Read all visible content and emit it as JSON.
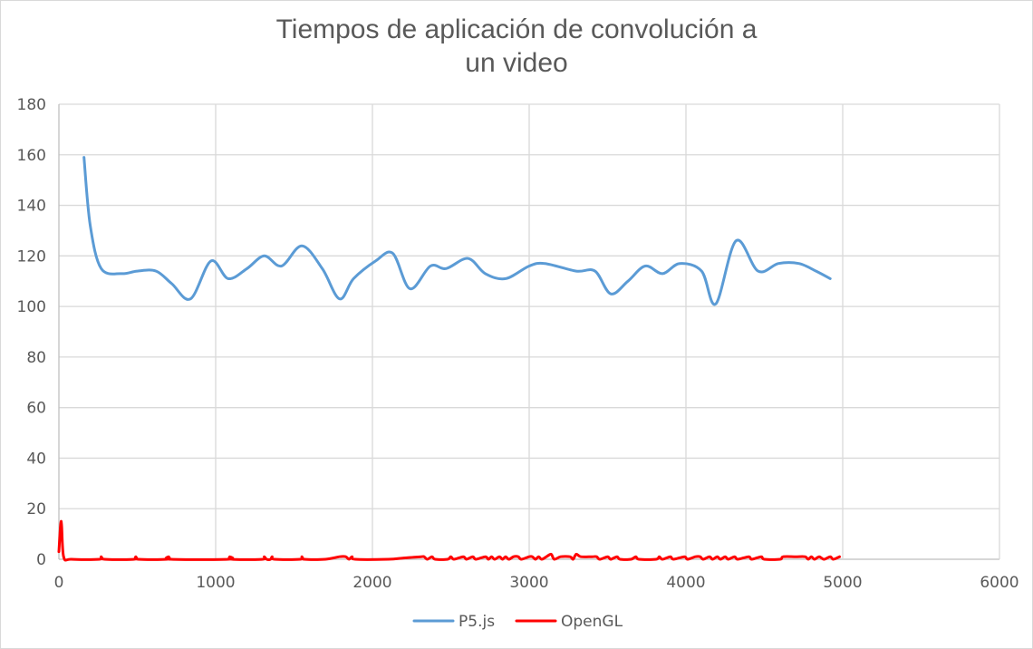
{
  "chart_data": {
    "type": "line",
    "title_line1": "Tiempos de aplicación de convolución a",
    "title_line2": "un video",
    "xlim": [
      0,
      6000
    ],
    "ylim": [
      0,
      180
    ],
    "x_ticks": [
      "0",
      "1000",
      "2000",
      "3000",
      "4000",
      "5000",
      "6000"
    ],
    "y_ticks": [
      "0",
      "20",
      "40",
      "60",
      "80",
      "100",
      "120",
      "140",
      "160",
      "180"
    ],
    "grid": true,
    "legend_position": "bottom",
    "series": [
      {
        "name": "P5.js",
        "color": "#5b9bd5",
        "points": [
          [
            160,
            159
          ],
          [
            200,
            132
          ],
          [
            270,
            115
          ],
          [
            400,
            113
          ],
          [
            500,
            114
          ],
          [
            620,
            114
          ],
          [
            720,
            109
          ],
          [
            840,
            103
          ],
          [
            970,
            118
          ],
          [
            1080,
            111
          ],
          [
            1200,
            115
          ],
          [
            1310,
            120
          ],
          [
            1420,
            116
          ],
          [
            1550,
            124
          ],
          [
            1680,
            115
          ],
          [
            1790,
            103
          ],
          [
            1880,
            111
          ],
          [
            2020,
            118
          ],
          [
            2130,
            121
          ],
          [
            2240,
            107
          ],
          [
            2370,
            116
          ],
          [
            2470,
            115
          ],
          [
            2610,
            119
          ],
          [
            2720,
            113
          ],
          [
            2850,
            111
          ],
          [
            3000,
            116
          ],
          [
            3100,
            117
          ],
          [
            3300,
            114
          ],
          [
            3420,
            114
          ],
          [
            3520,
            105
          ],
          [
            3630,
            110
          ],
          [
            3740,
            116
          ],
          [
            3850,
            113
          ],
          [
            3960,
            117
          ],
          [
            4100,
            114
          ],
          [
            4190,
            101
          ],
          [
            4320,
            126
          ],
          [
            4460,
            114
          ],
          [
            4590,
            117
          ],
          [
            4720,
            117
          ],
          [
            4830,
            114
          ],
          [
            4920,
            111
          ]
        ]
      },
      {
        "name": "OpenGL",
        "color": "#ff0000",
        "points": [
          [
            0,
            3
          ],
          [
            15,
            15
          ],
          [
            30,
            1
          ],
          [
            80,
            0
          ],
          [
            260,
            0
          ],
          [
            270,
            1
          ],
          [
            290,
            0
          ],
          [
            480,
            0
          ],
          [
            490,
            1
          ],
          [
            505,
            0
          ],
          [
            690,
            0
          ],
          [
            700,
            1
          ],
          [
            715,
            0
          ],
          [
            1080,
            0
          ],
          [
            1090,
            1
          ],
          [
            1105,
            0
          ],
          [
            1300,
            0
          ],
          [
            1310,
            1
          ],
          [
            1325,
            0
          ],
          [
            1350,
            0
          ],
          [
            1360,
            1
          ],
          [
            1375,
            0
          ],
          [
            1540,
            0
          ],
          [
            1550,
            1
          ],
          [
            1565,
            0
          ],
          [
            1700,
            0
          ],
          [
            1790,
            1
          ],
          [
            1830,
            1
          ],
          [
            1850,
            0
          ],
          [
            1870,
            1
          ],
          [
            1890,
            0
          ],
          [
            2100,
            0
          ],
          [
            2200,
            0.5
          ],
          [
            2310,
            1
          ],
          [
            2330,
            1
          ],
          [
            2350,
            0
          ],
          [
            2380,
            1
          ],
          [
            2400,
            0
          ],
          [
            2480,
            0
          ],
          [
            2500,
            1
          ],
          [
            2520,
            0
          ],
          [
            2580,
            1
          ],
          [
            2600,
            0
          ],
          [
            2640,
            1
          ],
          [
            2660,
            0
          ],
          [
            2720,
            1
          ],
          [
            2740,
            0
          ],
          [
            2760,
            1
          ],
          [
            2780,
            0
          ],
          [
            2810,
            1
          ],
          [
            2830,
            0
          ],
          [
            2850,
            1
          ],
          [
            2870,
            0
          ],
          [
            2900,
            1
          ],
          [
            2930,
            1
          ],
          [
            2950,
            0
          ],
          [
            3000,
            1
          ],
          [
            3020,
            1
          ],
          [
            3040,
            0
          ],
          [
            3060,
            1
          ],
          [
            3080,
            0
          ],
          [
            3110,
            1
          ],
          [
            3140,
            2
          ],
          [
            3160,
            0
          ],
          [
            3200,
            1
          ],
          [
            3260,
            1
          ],
          [
            3280,
            0
          ],
          [
            3300,
            2
          ],
          [
            3330,
            1
          ],
          [
            3400,
            1
          ],
          [
            3430,
            1
          ],
          [
            3450,
            0
          ],
          [
            3500,
            1
          ],
          [
            3520,
            0
          ],
          [
            3560,
            1
          ],
          [
            3580,
            0
          ],
          [
            3650,
            0
          ],
          [
            3680,
            1
          ],
          [
            3700,
            0
          ],
          [
            3810,
            0
          ],
          [
            3830,
            1
          ],
          [
            3850,
            0
          ],
          [
            3900,
            1
          ],
          [
            3920,
            0
          ],
          [
            3990,
            1
          ],
          [
            4010,
            0
          ],
          [
            4060,
            1
          ],
          [
            4090,
            1
          ],
          [
            4110,
            0
          ],
          [
            4150,
            1
          ],
          [
            4170,
            0
          ],
          [
            4200,
            1
          ],
          [
            4220,
            0
          ],
          [
            4250,
            1
          ],
          [
            4270,
            0
          ],
          [
            4310,
            1
          ],
          [
            4330,
            0
          ],
          [
            4400,
            1
          ],
          [
            4420,
            0
          ],
          [
            4480,
            1
          ],
          [
            4500,
            0
          ],
          [
            4600,
            0
          ],
          [
            4620,
            1
          ],
          [
            4700,
            1
          ],
          [
            4760,
            1
          ],
          [
            4780,
            0
          ],
          [
            4800,
            1
          ],
          [
            4820,
            0
          ],
          [
            4850,
            1
          ],
          [
            4880,
            0
          ],
          [
            4920,
            1
          ],
          [
            4940,
            0
          ],
          [
            4980,
            1
          ]
        ]
      }
    ]
  }
}
